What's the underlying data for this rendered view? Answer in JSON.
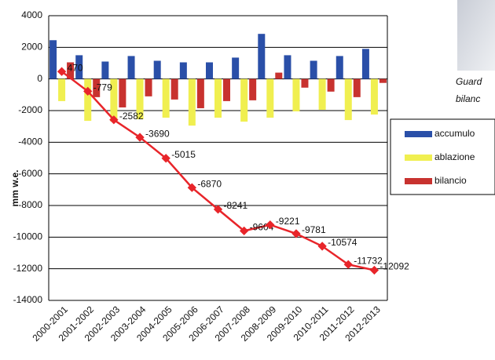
{
  "chart_data": {
    "type": "bar",
    "y_label": "mm w.e.",
    "categories": [
      "2000-2001",
      "2001-2002",
      "2002-2003",
      "2003-2004",
      "2004-2005",
      "2005-2006",
      "2006-2007",
      "2007-2008",
      "2008-2009",
      "2009-2010",
      "2010-2011",
      "2011-2012",
      "2012-2013"
    ],
    "series": [
      {
        "name": "accumulo",
        "color": "#2a4fa8",
        "values": [
          2450,
          1500,
          1100,
          1450,
          1150,
          1050,
          1050,
          1350,
          2850,
          1500,
          1150,
          1450,
          1900
        ]
      },
      {
        "name": "ablazione",
        "color": "#f0ef50",
        "values": [
          -1400,
          -2650,
          -2700,
          -2550,
          -2450,
          -2950,
          -2450,
          -2700,
          -2450,
          -2050,
          -1950,
          -2600,
          -2250
        ]
      },
      {
        "name": "bilancio",
        "color": "#c8322f",
        "values": [
          1050,
          -1150,
          -1800,
          -1100,
          -1300,
          -1850,
          -1400,
          -1350,
          400,
          -550,
          -800,
          -1150,
          -250
        ]
      }
    ],
    "line": {
      "color": "#e8252a",
      "values": [
        470,
        -779,
        -2582,
        -3690,
        -5015,
        -6870,
        -8241,
        -9604,
        -9221,
        -9781,
        -10574,
        -11732,
        -12092
      ]
    },
    "ylim": [
      -14000,
      4000
    ],
    "yticks": [
      -14000,
      -12000,
      -10000,
      -8000,
      -6000,
      -4000,
      -2000,
      0,
      2000,
      4000
    ],
    "grid": true,
    "side_text": [
      "Guard",
      "bilanc"
    ]
  }
}
